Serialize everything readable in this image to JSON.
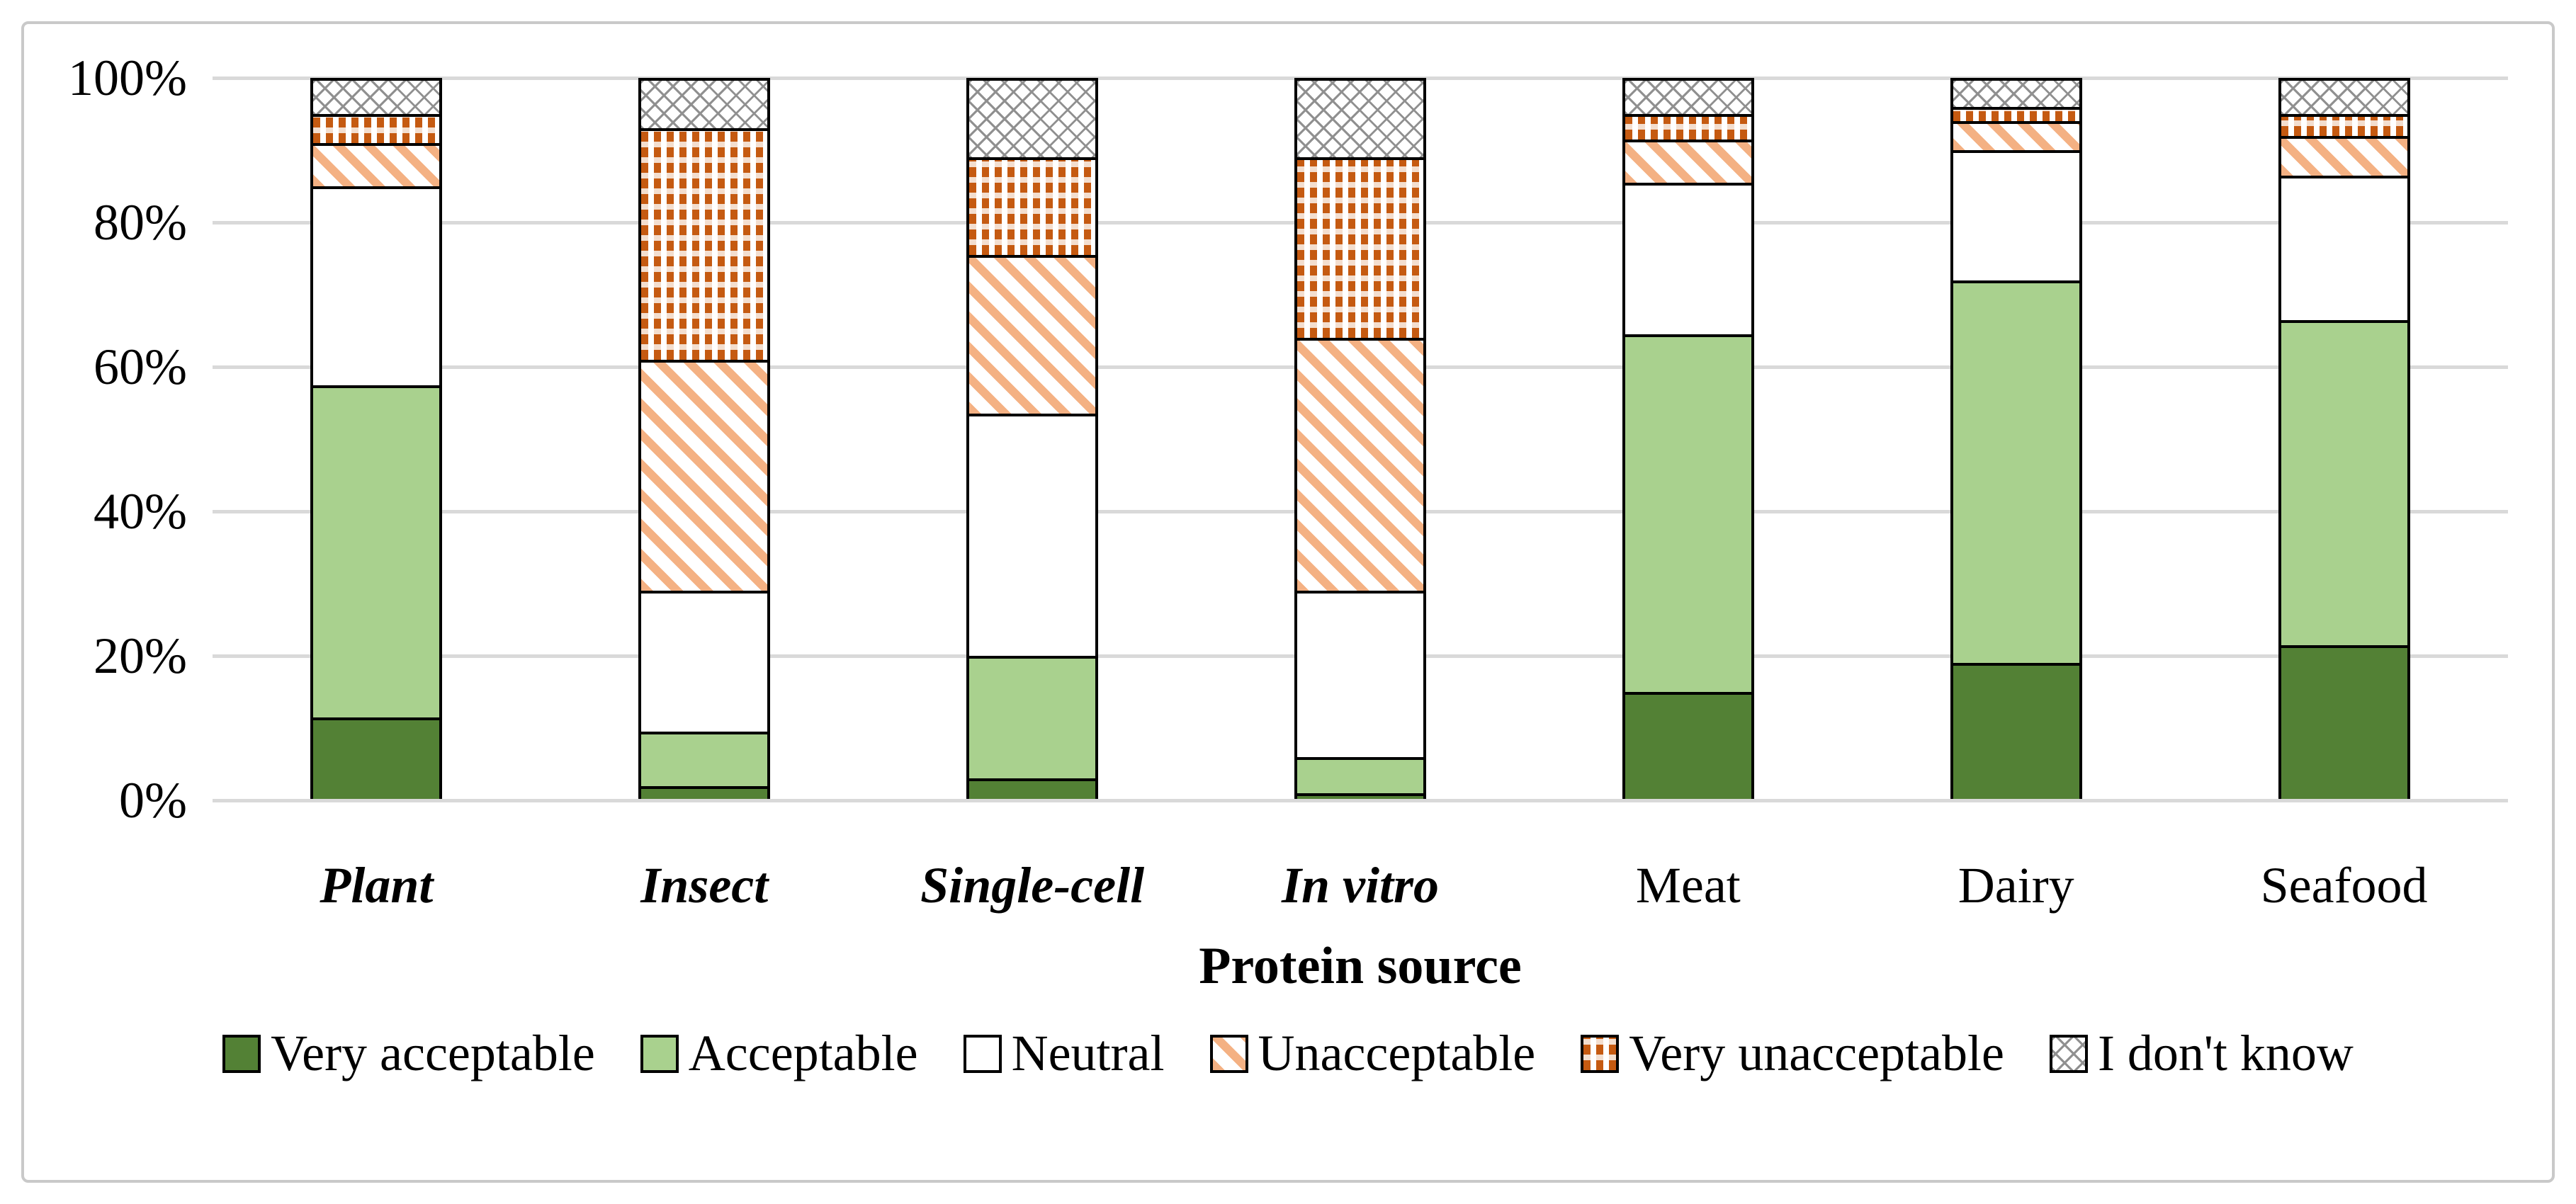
{
  "figure": {
    "background": "#ffffff",
    "border_color": "#c9c9c9",
    "gridline_color": "#d9d9d9",
    "bar_outline_color": "#000000"
  },
  "chart_data": {
    "type": "bar",
    "stacked": true,
    "orientation": "vertical",
    "title": "",
    "xlabel": "Protein source",
    "ylabel": "",
    "ylim": [
      0,
      100
    ],
    "yticks": [
      0,
      20,
      40,
      60,
      80,
      100
    ],
    "ytick_labels": [
      "0%",
      "20%",
      "40%",
      "60%",
      "80%",
      "100%"
    ],
    "grid": true,
    "legend_position": "bottom",
    "categories": [
      {
        "label": "Plant",
        "italic": true
      },
      {
        "label": "Insect",
        "italic": true
      },
      {
        "label": "Single-cell",
        "italic": true
      },
      {
        "label": "In vitro",
        "italic": true
      },
      {
        "label": "Meat",
        "italic": false
      },
      {
        "label": "Dairy",
        "italic": false
      },
      {
        "label": "Seafood",
        "italic": false
      }
    ],
    "series": [
      {
        "name": "Very acceptable",
        "pattern": "solid-dark-green",
        "color": "#538135",
        "values": [
          11.5,
          2,
          3,
          1,
          15,
          19,
          21.5
        ]
      },
      {
        "name": "Acceptable",
        "pattern": "solid-light-green",
        "color": "#a9d18e",
        "values": [
          46,
          7.5,
          17,
          5,
          49.5,
          53,
          45
        ]
      },
      {
        "name": "Neutral",
        "pattern": "solid-white",
        "color": "#ffffff",
        "values": [
          27.5,
          19.5,
          33.5,
          23,
          21,
          18,
          20
        ]
      },
      {
        "name": "Unacceptable",
        "pattern": "diagonal-stripes",
        "color": "#f4b183",
        "values": [
          6,
          32,
          22,
          35,
          6,
          4,
          5.5
        ]
      },
      {
        "name": "Very unacceptable",
        "pattern": "checkered",
        "color": "#c55a11",
        "values": [
          4,
          32,
          13.5,
          25,
          3.5,
          2,
          3
        ]
      },
      {
        "name": "I don't know",
        "pattern": "crosshatch",
        "color": "#909090",
        "values": [
          5,
          7,
          11,
          11,
          5,
          4,
          5
        ]
      }
    ]
  }
}
